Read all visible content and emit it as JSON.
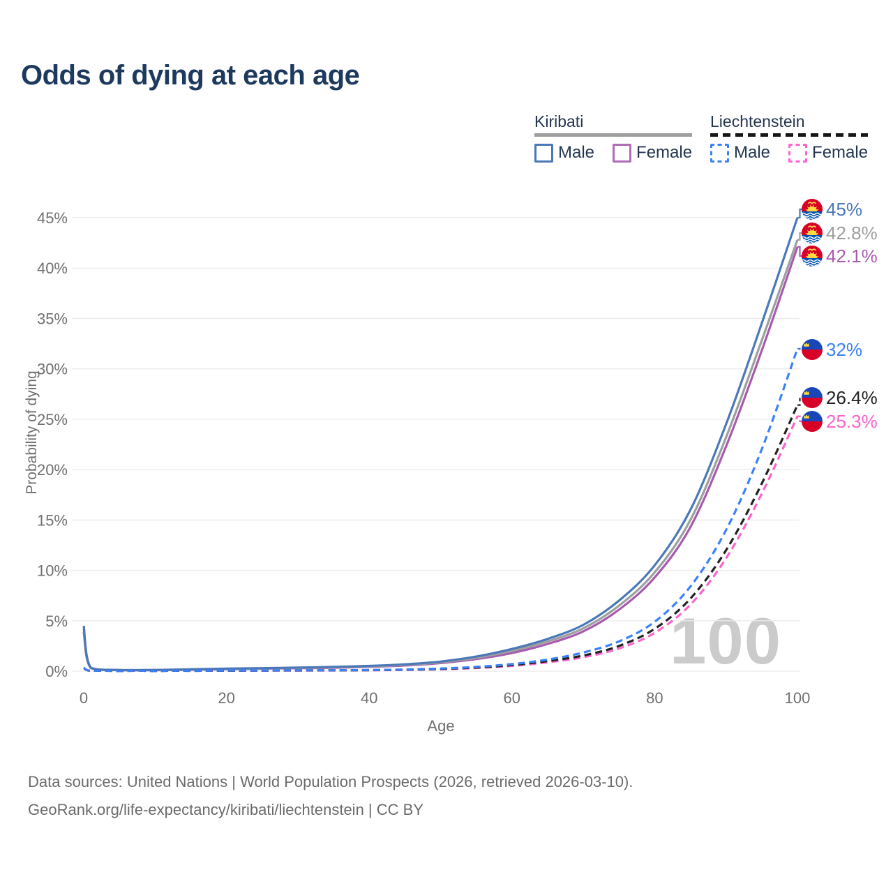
{
  "title": "Odds of dying at each age",
  "watermark": "100",
  "legend": {
    "groups": [
      {
        "name": "Kiribati",
        "underline": "solid",
        "underline_color": "#9e9e9e",
        "items": [
          {
            "label": "Male",
            "color": "#4a78b8",
            "dash": false
          },
          {
            "label": "Female",
            "color": "#b06cb8",
            "dash": false
          }
        ]
      },
      {
        "name": "Liechtenstein",
        "underline": "dashed",
        "underline_color": "#161616",
        "items": [
          {
            "label": "Male",
            "color": "#3b82f6",
            "dash": true
          },
          {
            "label": "Female",
            "color": "#fb63ce",
            "dash": true
          }
        ]
      }
    ]
  },
  "chart_data": {
    "type": "line",
    "title": "Odds of dying at each age",
    "xlabel": "Age",
    "ylabel": "Probability of dying",
    "xlim": [
      0,
      100
    ],
    "ylim": [
      0,
      45
    ],
    "x_ticks": [
      0,
      20,
      40,
      60,
      80,
      100
    ],
    "y_ticks": [
      0,
      5,
      10,
      15,
      20,
      25,
      30,
      35,
      40,
      45
    ],
    "y_tick_suffix": "%",
    "grid": "horizontal",
    "legend_position": "top-right",
    "x": [
      0,
      1,
      5,
      10,
      15,
      20,
      25,
      30,
      35,
      40,
      45,
      50,
      55,
      60,
      65,
      70,
      75,
      80,
      85,
      90,
      95,
      100
    ],
    "series": [
      {
        "id": "kiribati-female",
        "name": "Kiribati — Female",
        "country": "ki",
        "sex": "female",
        "color": "#a85bae",
        "dashed": false,
        "flag_icon": "kiribati-flag-icon",
        "end_label": "42.1%",
        "values": [
          3.9,
          0.3,
          0.1,
          0.1,
          0.14,
          0.19,
          0.24,
          0.29,
          0.34,
          0.43,
          0.56,
          0.8,
          1.2,
          1.8,
          2.7,
          3.95,
          6.1,
          9.3,
          14.3,
          22.3,
          31.8,
          42.1
        ]
      },
      {
        "id": "kiribati-total",
        "name": "Kiribati — Total",
        "country": "ki",
        "sex": "total",
        "color": "#9e9e9e",
        "dashed": false,
        "flag_icon": "kiribati-flag-icon",
        "end_label": "42.8%",
        "values": [
          4.2,
          0.32,
          0.11,
          0.11,
          0.16,
          0.22,
          0.27,
          0.32,
          0.38,
          0.47,
          0.62,
          0.87,
          1.32,
          2.0,
          2.95,
          4.25,
          6.5,
          9.8,
          15.0,
          23.2,
          32.8,
          42.8
        ]
      },
      {
        "id": "kiribati-male",
        "name": "Kiribati — Male",
        "country": "ki",
        "sex": "male",
        "color": "#4a78b8",
        "dashed": false,
        "flag_icon": "kiribati-flag-icon",
        "end_label": "45%",
        "values": [
          4.5,
          0.35,
          0.12,
          0.12,
          0.18,
          0.25,
          0.3,
          0.35,
          0.42,
          0.52,
          0.68,
          0.95,
          1.45,
          2.2,
          3.2,
          4.6,
          7.0,
          10.5,
          16.0,
          24.5,
          34.5,
          45.0
        ]
      },
      {
        "id": "liechtenstein-female",
        "name": "Liechtenstein — Female",
        "country": "li",
        "sex": "female",
        "color": "#fb63ce",
        "dashed": true,
        "flag_icon": "liechtenstein-flag-icon",
        "end_label": "25.3%",
        "values": [
          0.3,
          0.02,
          0.008,
          0.008,
          0.025,
          0.04,
          0.05,
          0.06,
          0.07,
          0.09,
          0.12,
          0.19,
          0.31,
          0.52,
          0.88,
          1.38,
          2.25,
          3.8,
          6.6,
          11.2,
          17.6,
          25.3
        ]
      },
      {
        "id": "liechtenstein-total",
        "name": "Liechtenstein — Total",
        "country": "li",
        "sex": "total",
        "color": "#222222",
        "dashed": true,
        "flag_icon": "liechtenstein-flag-icon",
        "end_label": "26.4%",
        "values": [
          0.32,
          0.025,
          0.009,
          0.009,
          0.03,
          0.05,
          0.06,
          0.07,
          0.08,
          0.1,
          0.14,
          0.22,
          0.36,
          0.6,
          1.0,
          1.55,
          2.5,
          4.2,
          7.2,
          12.0,
          18.6,
          26.4
        ]
      },
      {
        "id": "liechtenstein-male",
        "name": "Liechtenstein — Male",
        "country": "li",
        "sex": "male",
        "color": "#3b82f6",
        "dashed": true,
        "flag_icon": "liechtenstein-flag-icon",
        "end_label": "32%",
        "values": [
          0.35,
          0.03,
          0.01,
          0.01,
          0.04,
          0.06,
          0.07,
          0.08,
          0.09,
          0.11,
          0.16,
          0.26,
          0.42,
          0.7,
          1.15,
          1.85,
          2.95,
          4.9,
          8.4,
          14.0,
          22.0,
          32.0
        ]
      }
    ]
  },
  "footer": {
    "line1": "Data sources: United Nations | World Population Prospects (2026, retrieved 2026-03-10).",
    "line2": "GeoRank.org/life-expectancy/kiribati/liechtenstein | CC BY"
  }
}
